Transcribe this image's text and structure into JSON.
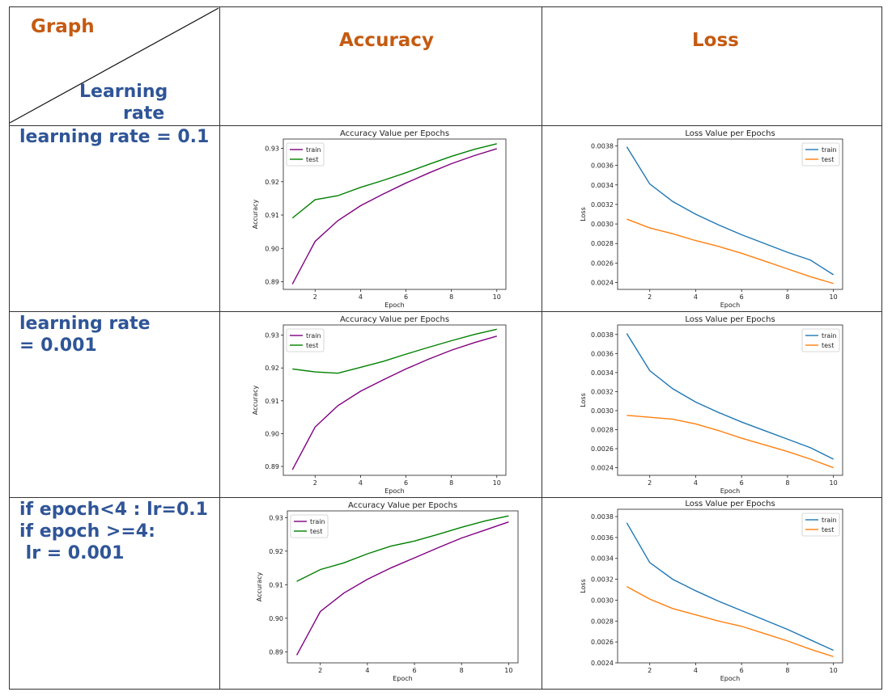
{
  "header": {
    "graph_label": "Graph",
    "lr_label_line1": "Learning",
    "lr_label_line2": "rate",
    "col_accuracy": "Accuracy",
    "col_loss": "Loss"
  },
  "rows": [
    {
      "label_lines": [
        "learning rate = 0.1"
      ]
    },
    {
      "label_lines": [
        "learning rate",
        "= 0.001"
      ]
    },
    {
      "label_lines": [
        "if epoch<4 : lr=0.1",
        "if epoch >=4:",
        " lr = 0.001"
      ]
    }
  ],
  "colors": {
    "acc_train": "#800080",
    "acc_test": "#008000",
    "loss_train": "#1f77b4",
    "loss_test": "#ff7f0e"
  },
  "chart_data": [
    {
      "type": "line",
      "title": "Accuracy Value per Epochs",
      "xlabel": "Epoch",
      "ylabel": "Accuracy",
      "x": [
        1,
        2,
        3,
        4,
        5,
        6,
        7,
        8,
        9,
        10
      ],
      "xlim": [
        0.6,
        10.4
      ],
      "ylim": [
        0.8877,
        0.9328
      ],
      "xticks": [
        "2",
        "4",
        "6",
        "8",
        "10"
      ],
      "yticks": [
        "0.89",
        "0.90",
        "0.91",
        "0.92",
        "0.93"
      ],
      "legend": "top-left",
      "series": [
        {
          "name": "train",
          "values": [
            0.8893,
            0.9021,
            0.9083,
            0.9128,
            0.9163,
            0.9196,
            0.9226,
            0.9254,
            0.9278,
            0.9299
          ]
        },
        {
          "name": "test",
          "values": [
            0.9091,
            0.9146,
            0.9158,
            0.9183,
            0.9204,
            0.9227,
            0.9252,
            0.9276,
            0.9297,
            0.9314
          ]
        }
      ]
    },
    {
      "type": "line",
      "title": "Loss Value per Epochs",
      "xlabel": "Epoch",
      "ylabel": "Loss",
      "x": [
        1,
        2,
        3,
        4,
        5,
        6,
        7,
        8,
        9,
        10
      ],
      "xlim": [
        0.6,
        10.4
      ],
      "ylim": [
        0.00233,
        0.00387
      ],
      "xticks": [
        "2",
        "4",
        "6",
        "8",
        "10"
      ],
      "yticks": [
        "0.0024",
        "0.0026",
        "0.0028",
        "0.0030",
        "0.0032",
        "0.0034",
        "0.0036",
        "0.0038"
      ],
      "legend": "top-right",
      "series": [
        {
          "name": "train",
          "values": [
            0.00379,
            0.00341,
            0.00323,
            0.0031,
            0.00299,
            0.00289,
            0.0028,
            0.00271,
            0.00263,
            0.00248
          ]
        },
        {
          "name": "test",
          "values": [
            0.00305,
            0.00296,
            0.0029,
            0.00283,
            0.00277,
            0.0027,
            0.00262,
            0.00254,
            0.00246,
            0.00239
          ]
        }
      ]
    },
    {
      "type": "line",
      "title": "Accuracy Value per Epochs",
      "xlabel": "Epoch",
      "ylabel": "Accuracy",
      "x": [
        1,
        2,
        3,
        4,
        5,
        6,
        7,
        8,
        9,
        10
      ],
      "xlim": [
        0.6,
        10.4
      ],
      "ylim": [
        0.8873,
        0.9331
      ],
      "xticks": [
        "2",
        "4",
        "6",
        "8",
        "10"
      ],
      "yticks": [
        "0.89",
        "0.90",
        "0.91",
        "0.92",
        "0.93"
      ],
      "legend": "top-left",
      "series": [
        {
          "name": "train",
          "values": [
            0.889,
            0.902,
            0.9085,
            0.9129,
            0.9164,
            0.9197,
            0.9227,
            0.9254,
            0.9277,
            0.9297
          ]
        },
        {
          "name": "test",
          "values": [
            0.9197,
            0.9188,
            0.9184,
            0.9202,
            0.922,
            0.9242,
            0.9263,
            0.9283,
            0.9302,
            0.9318
          ]
        }
      ]
    },
    {
      "type": "line",
      "title": "Loss Value per Epochs",
      "xlabel": "Epoch",
      "ylabel": "Loss",
      "x": [
        1,
        2,
        3,
        4,
        5,
        6,
        7,
        8,
        9,
        10
      ],
      "xlim": [
        0.6,
        10.4
      ],
      "ylim": [
        0.00232,
        0.0039
      ],
      "xticks": [
        "2",
        "4",
        "6",
        "8",
        "10"
      ],
      "yticks": [
        "0.0024",
        "0.0026",
        "0.0028",
        "0.0030",
        "0.0032",
        "0.0034",
        "0.0036",
        "0.0038"
      ],
      "legend": "top-right",
      "series": [
        {
          "name": "train",
          "values": [
            0.00381,
            0.00342,
            0.00323,
            0.00309,
            0.00298,
            0.00288,
            0.00279,
            0.0027,
            0.00261,
            0.00249
          ]
        },
        {
          "name": "test",
          "values": [
            0.00295,
            0.00293,
            0.00291,
            0.00286,
            0.00279,
            0.00271,
            0.00264,
            0.00257,
            0.00249,
            0.0024
          ]
        }
      ]
    },
    {
      "type": "line",
      "title": "Accuracy Value per Epochs",
      "xlabel": "Epoch",
      "ylabel": "Accuracy",
      "x": [
        1,
        2,
        3,
        4,
        5,
        6,
        7,
        8,
        9,
        10
      ],
      "xlim": [
        0.6,
        10.4
      ],
      "ylim": [
        0.8867,
        0.932
      ],
      "xticks": [
        "2",
        "4",
        "6",
        "8",
        "10"
      ],
      "yticks": [
        "0.89",
        "0.90",
        "0.91",
        "0.92",
        "0.93"
      ],
      "legend": "top-left",
      "series": [
        {
          "name": "train",
          "values": [
            0.889,
            0.902,
            0.9075,
            0.9116,
            0.915,
            0.918,
            0.921,
            0.9239,
            0.9263,
            0.9287
          ]
        },
        {
          "name": "test",
          "values": [
            0.911,
            0.9145,
            0.9165,
            0.9192,
            0.9215,
            0.923,
            0.925,
            0.9271,
            0.929,
            0.9305
          ]
        }
      ]
    },
    {
      "type": "line",
      "title": "Loss Value per Epochs",
      "xlabel": "Epoch",
      "ylabel": "Loss",
      "x": [
        1,
        2,
        3,
        4,
        5,
        6,
        7,
        8,
        9,
        10
      ],
      "xlim": [
        0.6,
        10.4
      ],
      "ylim": [
        0.0024,
        0.00387
      ],
      "xticks": [
        "2",
        "4",
        "6",
        "8",
        "10"
      ],
      "yticks": [
        "0.0024",
        "0.0026",
        "0.0028",
        "0.0030",
        "0.0032",
        "0.0034",
        "0.0036",
        "0.0038"
      ],
      "legend": "top-right",
      "series": [
        {
          "name": "train",
          "values": [
            0.00374,
            0.00336,
            0.0032,
            0.00309,
            0.00299,
            0.0029,
            0.00281,
            0.00272,
            0.00262,
            0.00252
          ]
        },
        {
          "name": "test",
          "values": [
            0.00313,
            0.00301,
            0.00292,
            0.00286,
            0.0028,
            0.00275,
            0.00268,
            0.00261,
            0.00253,
            0.00246
          ]
        }
      ]
    }
  ]
}
